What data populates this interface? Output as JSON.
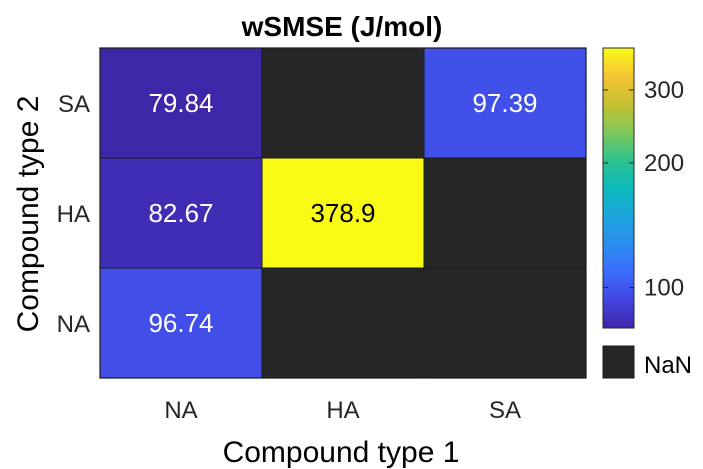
{
  "chart_data": {
    "type": "heatmap",
    "title": "wSMSE (J/mol)",
    "xlabel": "Compound type 1",
    "ylabel": "Compound type 2",
    "x_categories": [
      "NA",
      "HA",
      "SA"
    ],
    "y_categories": [
      "SA",
      "HA",
      "NA"
    ],
    "cells": [
      [
        {
          "label": "79.84",
          "value": 79.84
        },
        {
          "label": null,
          "value": null
        },
        {
          "label": "97.39",
          "value": 97.39
        }
      ],
      [
        {
          "label": "82.67",
          "value": 82.67
        },
        {
          "label": "378.9",
          "value": 378.9
        },
        {
          "label": null,
          "value": null
        }
      ],
      [
        {
          "label": "96.74",
          "value": 96.74
        },
        {
          "label": null,
          "value": null
        },
        {
          "label": null,
          "value": null
        }
      ]
    ],
    "colorbar": {
      "colormap": "parula",
      "scale": "log",
      "range": [
        79.84,
        378.9
      ],
      "ticks": [
        {
          "value": 100,
          "label": "100"
        },
        {
          "value": 200,
          "label": "200"
        },
        {
          "value": 300,
          "label": "300"
        }
      ]
    },
    "nan_legend": {
      "label": "NaN",
      "color": "#262626"
    },
    "colors": {
      "nan": "#262626",
      "cell_border": "#1a1a1a",
      "text_light": "#ffffff",
      "text_dark": "#000000"
    }
  }
}
